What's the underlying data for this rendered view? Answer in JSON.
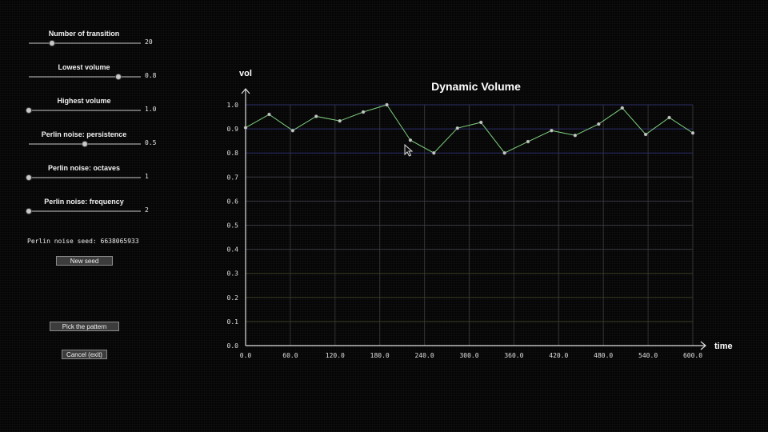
{
  "controls": {
    "sliders": [
      {
        "label": "Number of transition",
        "value": "20",
        "fraction": 0.21
      },
      {
        "label": "Lowest volume",
        "value": "0.8",
        "fraction": 0.8
      },
      {
        "label": "Highest volume",
        "value": "1.0",
        "fraction": 0.0
      },
      {
        "label": "Perlin noise: persistence",
        "value": "0.5",
        "fraction": 0.5
      },
      {
        "label": "Perlin noise: octaves",
        "value": "1",
        "fraction": 0.0
      },
      {
        "label": "Perlin noise: frequency",
        "value": "2",
        "fraction": 0.0
      }
    ],
    "seed_text": "Perlin noise seed: 6638065933",
    "new_seed_label": "New seed",
    "pick_pattern_label": "Pick the pattern",
    "cancel_label": "Cancel (exit)"
  },
  "chart_data": {
    "type": "line",
    "title": "Dynamic Volume",
    "xlabel": "time",
    "ylabel": "vol",
    "xlim": [
      0,
      600
    ],
    "ylim": [
      0,
      1.0
    ],
    "xticks": [
      "0.0",
      "60.0",
      "120.0",
      "180.0",
      "240.0",
      "300.0",
      "360.0",
      "420.0",
      "480.0",
      "540.0",
      "600.0"
    ],
    "yticks": [
      "0.0",
      "0.1",
      "0.2",
      "0.3",
      "0.4",
      "0.5",
      "0.6",
      "0.7",
      "0.8",
      "0.9",
      "1.0"
    ],
    "grid": true,
    "line_color": "#7fcf7f",
    "marker_color": "#c8c8c8",
    "x": [
      0,
      31.6,
      63.2,
      94.7,
      126.3,
      157.9,
      189.5,
      221.1,
      252.6,
      284.2,
      315.8,
      347.4,
      378.9,
      410.5,
      442.1,
      473.7,
      505.3,
      536.8,
      568.4,
      600
    ],
    "values": [
      0.905,
      0.96,
      0.893,
      0.952,
      0.933,
      0.97,
      1.0,
      0.853,
      0.8,
      0.903,
      0.927,
      0.8,
      0.847,
      0.893,
      0.873,
      0.92,
      0.987,
      0.877,
      0.947,
      0.883
    ]
  }
}
